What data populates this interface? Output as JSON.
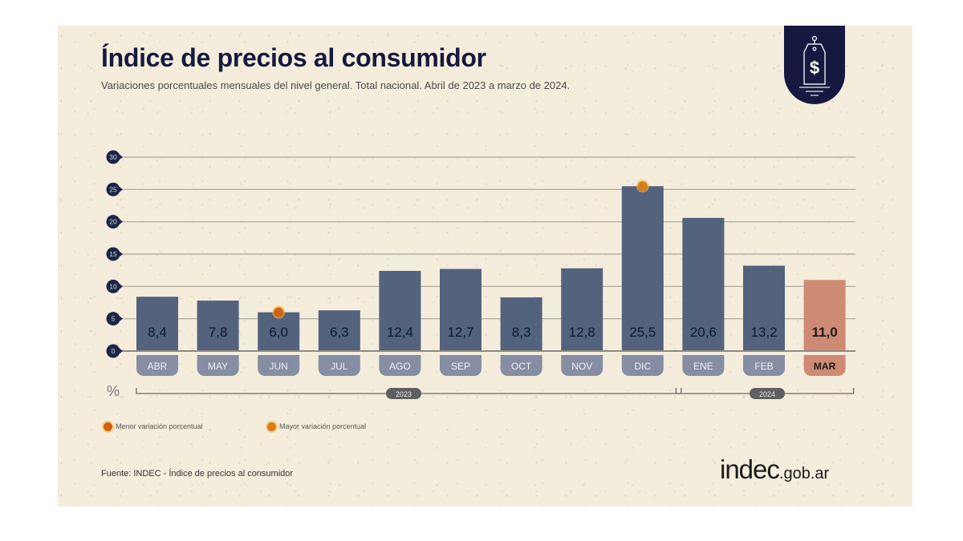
{
  "header": {
    "title": "Índice de precios al consumidor",
    "subtitle": "Variaciones porcentuales mensuales del nivel general. Total nacional. Abril de 2023 a marzo de 2024.",
    "badge_icon": "price-tag-dollar-icon"
  },
  "chart_data": {
    "type": "bar",
    "title": "Índice de precios al consumidor",
    "subtitle": "Variaciones porcentuales mensuales del nivel general. Total nacional. Abril de 2023 a marzo de 2024.",
    "xlabel": "",
    "ylabel": "%",
    "ylim": [
      0,
      30
    ],
    "yticks": [
      0,
      5,
      10,
      15,
      20,
      25,
      30
    ],
    "grid": true,
    "categories": [
      "ABR",
      "MAY",
      "JUN",
      "JUL",
      "AGO",
      "SEP",
      "OCT",
      "NOV",
      "DIC",
      "ENE",
      "FEB",
      "MAR"
    ],
    "values": [
      8.4,
      7.8,
      6.0,
      6.3,
      12.4,
      12.7,
      8.3,
      12.8,
      25.5,
      20.6,
      13.2,
      11.0
    ],
    "value_labels": [
      "8,4",
      "7,8",
      "6,0",
      "6,3",
      "12,4",
      "12,7",
      "8,3",
      "12,8",
      "25,5",
      "20,6",
      "13,2",
      "11,0"
    ],
    "highlight_category": "MAR",
    "colors": {
      "bar": "#53627d",
      "bar_highlight": "#cf8a73",
      "month_pill": "#858ea3",
      "month_pill_highlight": "#cf8a73",
      "tick_bubble": "#1e2448",
      "marker_min": "#d2600f",
      "marker_max": "#d77e18"
    },
    "markers": [
      {
        "category": "JUN",
        "type": "min",
        "label": "Menor variación porcentual"
      },
      {
        "category": "DIC",
        "type": "max",
        "label": "Mayor variación porcentual"
      }
    ],
    "year_groups": [
      {
        "label": "2023",
        "from": "ABR",
        "to": "DIC"
      },
      {
        "label": "2024",
        "from": "ENE",
        "to": "MAR"
      }
    ],
    "legend": {
      "position": "bottom-left",
      "entries": [
        "Menor variación porcentual",
        "Mayor variación porcentual"
      ]
    }
  },
  "axis_unit": "%",
  "footer": {
    "source": "Fuente: INDEC - Índice de precios al consumidor",
    "logo_main": "indec",
    "logo_suffix": ".gob.ar"
  }
}
